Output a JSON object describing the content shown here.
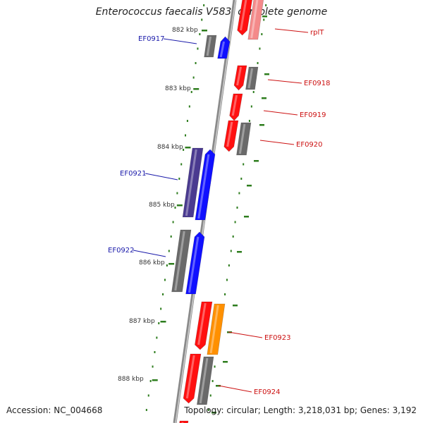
{
  "title": "Enterococcus faecalis V583, complete genome",
  "footer": {
    "accession": "Accession: NC_004668",
    "topology": "Topology: circular; Length: 3,218,031 bp; Genes: 3,192"
  },
  "colors": {
    "backbone": "#8a8a8a",
    "tick": "#2e7d1e",
    "forward_gene": "#1010ff",
    "reverse_gene": "#ff1010",
    "hypothetical": "#6a6a6a",
    "conserved_purple": "#4a3a90",
    "orange": "#ff9000",
    "pink": "#f48a8a",
    "forward_label": "#1a1aaa",
    "reverse_label": "#cc1111"
  },
  "tick_labels": [
    "882 kbp",
    "883 kbp",
    "884 kbp",
    "885 kbp",
    "886 kbp",
    "887 kbp",
    "888 kbp"
  ],
  "gene_labels": {
    "forward": [
      "EF0917",
      "EF0921",
      "EF0922"
    ],
    "reverse": [
      "rplT",
      "EF0918",
      "EF0919",
      "EF0920",
      "EF0923",
      "EF0924"
    ]
  }
}
